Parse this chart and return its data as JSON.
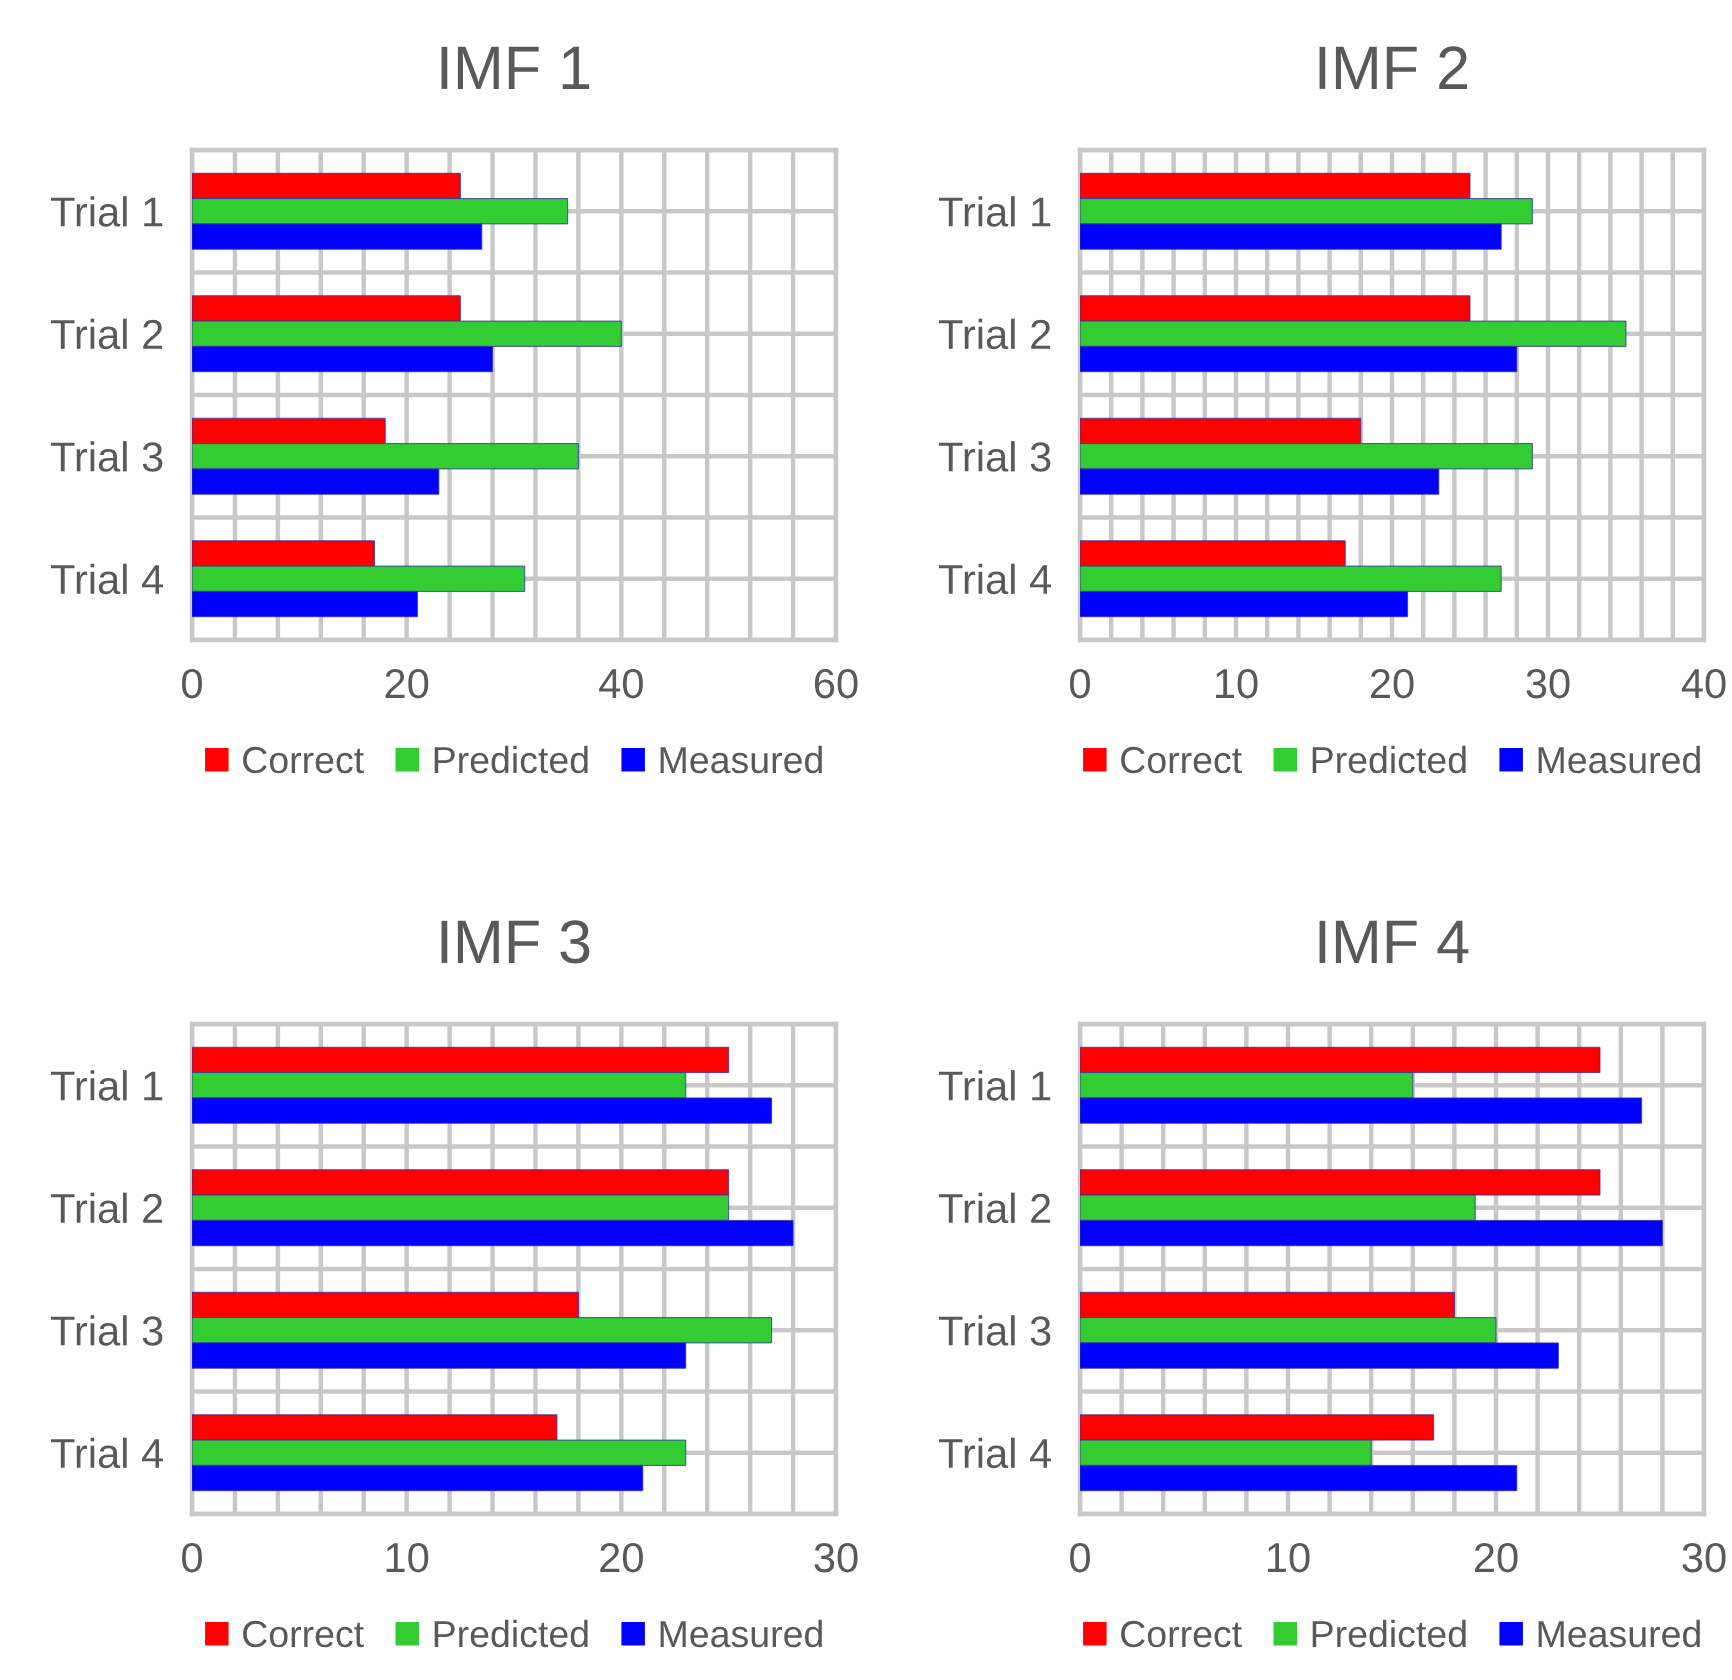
{
  "chart_data": [
    {
      "type": "bar",
      "orientation": "horizontal",
      "title": "IMF 1",
      "categories": [
        "Trial 1",
        "Trial 2",
        "Trial 3",
        "Trial 4"
      ],
      "xlim": [
        0,
        60
      ],
      "xticks": [
        0,
        {
          "value": 4,
          "label": null
        },
        {
          "value": 8,
          "label": null
        },
        {
          "value": 12,
          "label": null
        },
        {
          "value": 16,
          "label": null
        },
        20,
        {
          "value": 24,
          "label": null
        },
        {
          "value": 28,
          "label": null
        },
        {
          "value": 32,
          "label": null
        },
        {
          "value": 36,
          "label": null
        },
        40,
        {
          "value": 44,
          "label": null
        },
        {
          "value": 48,
          "label": null
        },
        {
          "value": 52,
          "label": null
        },
        {
          "value": 56,
          "label": null
        },
        60
      ],
      "grid": true,
      "legend": "bottom",
      "series": [
        {
          "name": "Correct",
          "color": "#ff0000",
          "values": [
            25,
            25,
            18,
            17
          ]
        },
        {
          "name": "Predicted",
          "color": "#33cc33",
          "values": [
            35,
            40,
            36,
            31
          ]
        },
        {
          "name": "Measured",
          "color": "#0000ff",
          "values": [
            27,
            28,
            23,
            21
          ]
        }
      ]
    },
    {
      "type": "bar",
      "orientation": "horizontal",
      "title": "IMF 2",
      "categories": [
        "Trial 1",
        "Trial 2",
        "Trial 3",
        "Trial 4"
      ],
      "xlim": [
        0,
        40
      ],
      "xticks": [
        0,
        {
          "value": 2,
          "label": null
        },
        {
          "value": 4,
          "label": null
        },
        {
          "value": 6,
          "label": null
        },
        {
          "value": 8,
          "label": null
        },
        10,
        {
          "value": 12,
          "label": null
        },
        {
          "value": 14,
          "label": null
        },
        {
          "value": 16,
          "label": null
        },
        {
          "value": 18,
          "label": null
        },
        20,
        {
          "value": 22,
          "label": null
        },
        {
          "value": 24,
          "label": null
        },
        {
          "value": 26,
          "label": null
        },
        {
          "value": 28,
          "label": null
        },
        30,
        {
          "value": 32,
          "label": null
        },
        {
          "value": 34,
          "label": null
        },
        {
          "value": 36,
          "label": null
        },
        {
          "value": 38,
          "label": null
        },
        40
      ],
      "grid": true,
      "legend": "bottom",
      "series": [
        {
          "name": "Correct",
          "color": "#ff0000",
          "values": [
            25,
            25,
            18,
            17
          ]
        },
        {
          "name": "Predicted",
          "color": "#33cc33",
          "values": [
            29,
            35,
            29,
            27
          ]
        },
        {
          "name": "Measured",
          "color": "#0000ff",
          "values": [
            27,
            28,
            23,
            21
          ]
        }
      ]
    },
    {
      "type": "bar",
      "orientation": "horizontal",
      "title": "IMF 3",
      "categories": [
        "Trial 1",
        "Trial 2",
        "Trial 3",
        "Trial 4"
      ],
      "xlim": [
        0,
        30
      ],
      "xticks": [
        0,
        {
          "value": 2,
          "label": null
        },
        {
          "value": 4,
          "label": null
        },
        {
          "value": 6,
          "label": null
        },
        {
          "value": 8,
          "label": null
        },
        10,
        {
          "value": 12,
          "label": null
        },
        {
          "value": 14,
          "label": null
        },
        {
          "value": 16,
          "label": null
        },
        {
          "value": 18,
          "label": null
        },
        20,
        {
          "value": 22,
          "label": null
        },
        {
          "value": 24,
          "label": null
        },
        {
          "value": 26,
          "label": null
        },
        {
          "value": 28,
          "label": null
        },
        30
      ],
      "grid": true,
      "legend": "bottom",
      "series": [
        {
          "name": "Correct",
          "color": "#ff0000",
          "values": [
            25,
            25,
            18,
            17
          ]
        },
        {
          "name": "Predicted",
          "color": "#33cc33",
          "values": [
            23,
            25,
            27,
            23
          ]
        },
        {
          "name": "Measured",
          "color": "#0000ff",
          "values": [
            27,
            28,
            23,
            21
          ]
        }
      ]
    },
    {
      "type": "bar",
      "orientation": "horizontal",
      "title": "IMF 4",
      "categories": [
        "Trial 1",
        "Trial 2",
        "Trial 3",
        "Trial 4"
      ],
      "xlim": [
        0,
        30
      ],
      "xticks": [
        0,
        {
          "value": 2,
          "label": null
        },
        {
          "value": 4,
          "label": null
        },
        {
          "value": 6,
          "label": null
        },
        {
          "value": 8,
          "label": null
        },
        10,
        {
          "value": 12,
          "label": null
        },
        {
          "value": 14,
          "label": null
        },
        {
          "value": 16,
          "label": null
        },
        {
          "value": 18,
          "label": null
        },
        20,
        {
          "value": 22,
          "label": null
        },
        {
          "value": 24,
          "label": null
        },
        {
          "value": 26,
          "label": null
        },
        {
          "value": 28,
          "label": null
        },
        30
      ],
      "grid": true,
      "legend": "bottom",
      "series": [
        {
          "name": "Correct",
          "color": "#ff0000",
          "values": [
            25,
            25,
            18,
            17
          ]
        },
        {
          "name": "Predicted",
          "color": "#33cc33",
          "values": [
            16,
            19,
            20,
            14
          ]
        },
        {
          "name": "Measured",
          "color": "#0000ff",
          "values": [
            27,
            28,
            23,
            21
          ]
        }
      ]
    }
  ]
}
